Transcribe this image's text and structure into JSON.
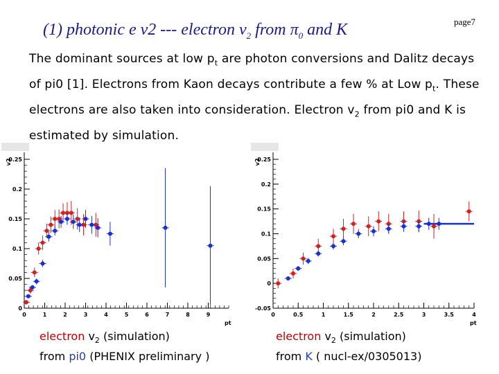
{
  "header": {
    "title_main": "(1) photonic e v2 --- electron v",
    "title_sub2": "2",
    "title_from": " from π",
    "title_sub0": "0",
    "title_tail": " and K",
    "page_label": "page7"
  },
  "body": {
    "p1": "The dominant sources at low p",
    "p1_sub": "t",
    "p2": " are photon conversions and Dalitz decays of pi0 [1]. Electrons from Kaon decays contribute a few % at Low p",
    "p2_sub": "t",
    "p3": ". These electrons are also taken into consideration. Electron v",
    "p3_sub": "2",
    "p4": " from pi0 and K is estimated by simulation."
  },
  "captions": {
    "left_word": "electron",
    "left_v": " v",
    "left_sub": "2",
    "left_rest": " (simulation)",
    "left_from": "from ",
    "left_src": "pi0",
    "left_ref": " (PHENIX preliminary )",
    "right_word": "electron",
    "right_v": " v",
    "right_sub": "2",
    "right_rest": " (simulation)",
    "right_from": "from ",
    "right_src": "K",
    "right_ref": " ( nucl-ex/0305013)"
  },
  "colors": {
    "red": "#d42020",
    "blue": "#1a2fcf",
    "axis": "#000000"
  },
  "chart_data": [
    {
      "type": "scatter",
      "name": "v2 of electrons from pi0",
      "ylabel": "v2",
      "xlabel": "pt",
      "xlim": [
        0,
        10
      ],
      "ylim": [
        0,
        0.25
      ],
      "xticks": [
        "0",
        "1",
        "2",
        "3",
        "4",
        "5",
        "6",
        "7",
        "8",
        "9"
      ],
      "yticks": [
        "0",
        "0.05",
        "0.1",
        "0.15",
        "0.2",
        "0.25"
      ],
      "series": [
        {
          "name": "pi0 simulation (red)",
          "color": "red",
          "x": [
            0.1,
            0.3,
            0.5,
            0.7,
            0.9,
            1.1,
            1.3,
            1.5,
            1.7,
            1.9,
            2.1,
            2.3,
            2.6,
            2.9,
            3.5
          ],
          "y": [
            0.01,
            0.03,
            0.06,
            0.1,
            0.11,
            0.13,
            0.14,
            0.15,
            0.15,
            0.16,
            0.16,
            0.16,
            0.15,
            0.14,
            0.14
          ],
          "err": [
            0.004,
            0.006,
            0.008,
            0.01,
            0.012,
            0.012,
            0.014,
            0.015,
            0.016,
            0.016,
            0.018,
            0.02,
            0.018,
            0.018,
            0.02
          ]
        },
        {
          "name": "pi0 simulation (blue)",
          "color": "blue",
          "x": [
            0.2,
            0.4,
            0.6,
            0.9,
            1.2,
            1.5,
            1.8,
            2.1,
            2.4,
            2.7,
            3.0,
            3.3,
            3.6,
            4.2,
            6.9,
            9.1
          ],
          "y": [
            0.02,
            0.035,
            0.045,
            0.075,
            0.12,
            0.13,
            0.145,
            0.15,
            0.145,
            0.14,
            0.15,
            0.14,
            0.135,
            0.125,
            0.135,
            0.105
          ],
          "err": [
            0.003,
            0.004,
            0.005,
            0.006,
            0.008,
            0.008,
            0.01,
            0.01,
            0.012,
            0.012,
            0.015,
            0.015,
            0.016,
            0.02,
            0.1,
            0.1
          ]
        }
      ]
    },
    {
      "type": "scatter",
      "name": "v2 of electrons from K",
      "ylabel": "v2",
      "xlabel": "pt",
      "xlim": [
        0,
        4
      ],
      "ylim": [
        -0.05,
        0.25
      ],
      "xticks": [
        "0",
        "0.5",
        "1",
        "1.5",
        "2",
        "2.5",
        "3",
        "3.5",
        "4"
      ],
      "yticks": [
        "-0.05",
        "0",
        "0.05",
        "0.1",
        "0.15",
        "0.2",
        "0.25"
      ],
      "series": [
        {
          "name": "K simulation (red)",
          "color": "red",
          "x": [
            0.1,
            0.4,
            0.6,
            0.9,
            1.2,
            1.4,
            1.6,
            1.9,
            2.1,
            2.3,
            2.6,
            2.9,
            3.2,
            3.9
          ],
          "y": [
            0,
            0.02,
            0.05,
            0.075,
            0.095,
            0.11,
            0.12,
            0.115,
            0.125,
            0.12,
            0.125,
            0.125,
            0.115,
            0.145
          ],
          "err": [
            0.01,
            0.01,
            0.012,
            0.015,
            0.015,
            0.02,
            0.02,
            0.02,
            0.02,
            0.02,
            0.02,
            0.022,
            0.025,
            0.02
          ]
        },
        {
          "name": "K simulation (blue)",
          "color": "blue",
          "x": [
            0.3,
            0.5,
            0.7,
            0.9,
            1.2,
            1.4,
            1.7,
            2.0,
            2.3,
            2.6,
            2.9,
            3.1,
            3.3
          ],
          "y": [
            0.01,
            0.03,
            0.045,
            0.06,
            0.075,
            0.085,
            0.1,
            0.105,
            0.11,
            0.115,
            0.115,
            0.12,
            0.12
          ],
          "err": [
            0.004,
            0.005,
            0.006,
            0.006,
            0.007,
            0.008,
            0.009,
            0.01,
            0.01,
            0.011,
            0.011,
            0.012,
            0.012
          ]
        }
      ],
      "line": {
        "color": "blue",
        "x": [
          3.0,
          4.0
        ],
        "y": [
          0.12,
          0.12
        ]
      }
    }
  ]
}
